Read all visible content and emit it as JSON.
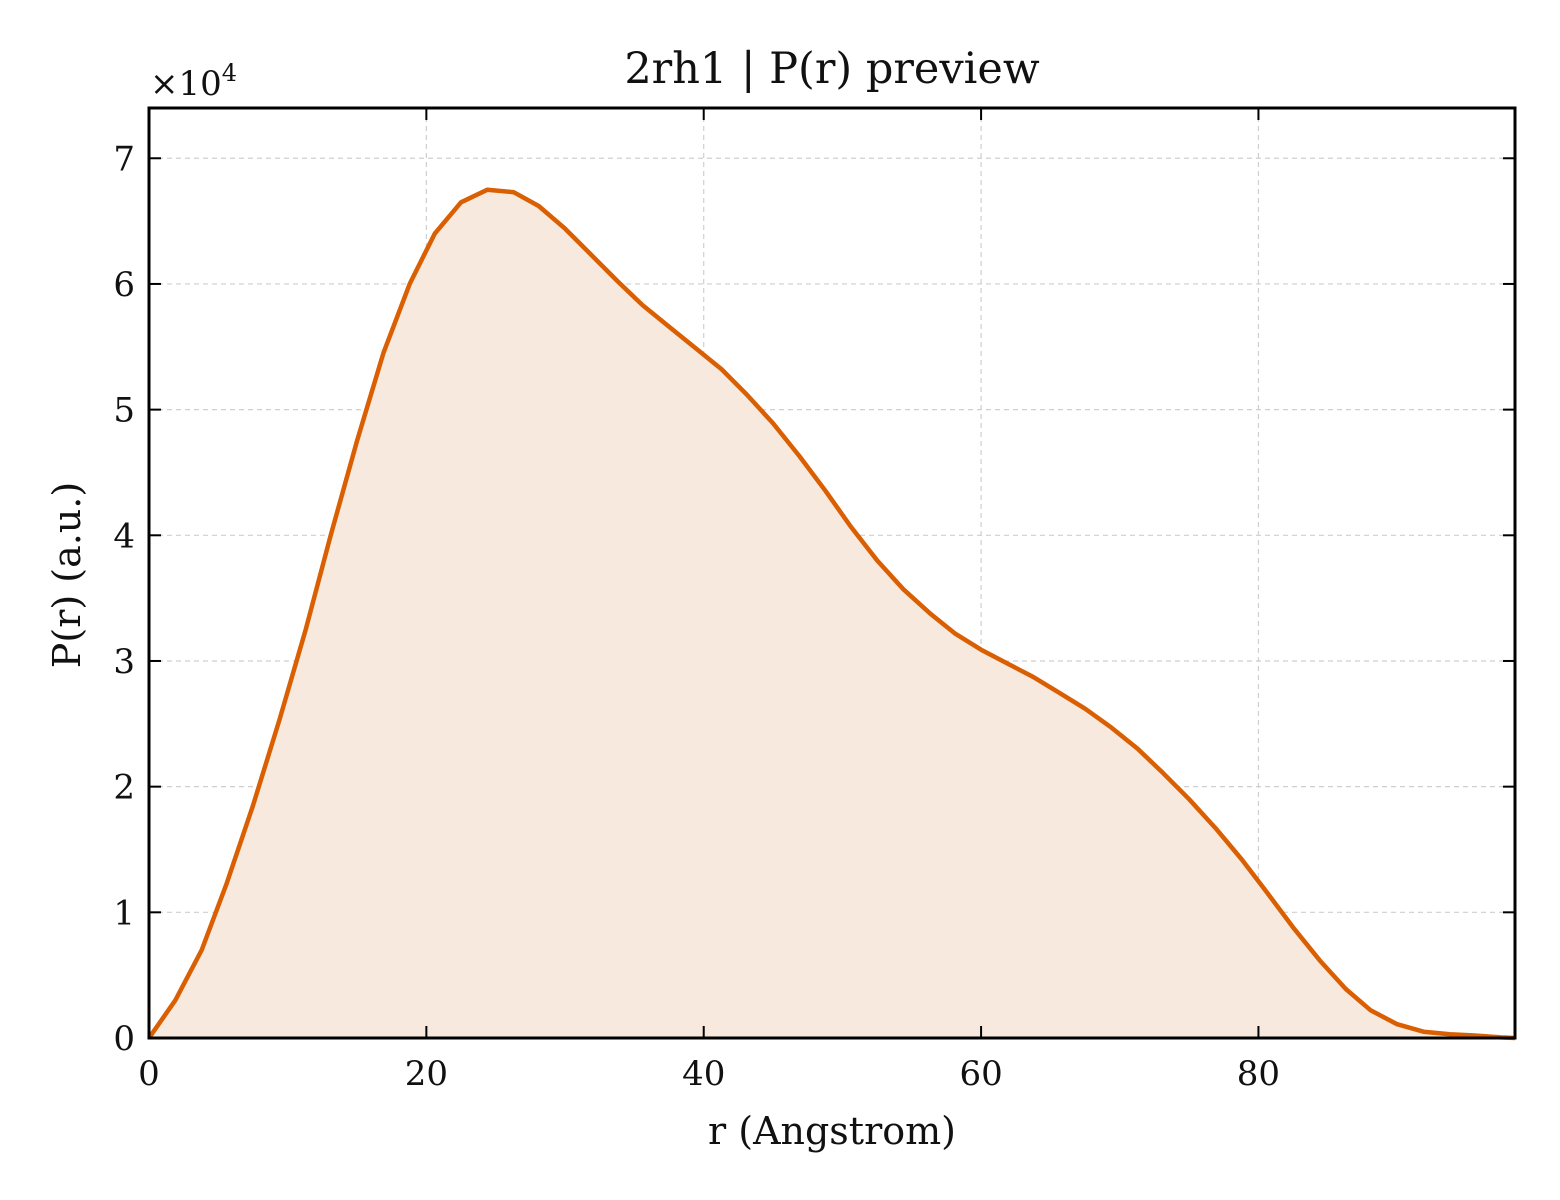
{
  "chart_data": {
    "type": "area",
    "title": "2rh1 | P(r) preview",
    "xlabel": "r (Angstrom)",
    "ylabel": "P(r) (a.u.)",
    "y_scale_label_prefix": "×10",
    "y_scale_label_exponent": "4",
    "y_multiplier": 10000,
    "xlim": [
      0,
      98.5
    ],
    "ylim": [
      0,
      74000
    ],
    "x_ticks": [
      0,
      20,
      40,
      60,
      80
    ],
    "y_ticks": [
      0,
      10000,
      20000,
      30000,
      40000,
      50000,
      60000,
      70000
    ],
    "grid": true,
    "line_color": "#d95f02",
    "fill_color": "#f8e9de",
    "series": [
      {
        "x": [
          0,
          1.9,
          3.8,
          5.6,
          7.5,
          9.4,
          11.3,
          13.1,
          15.0,
          16.9,
          18.8,
          20.6,
          22.5,
          24.4,
          26.3,
          28.1,
          30.0,
          31.9,
          33.8,
          35.6,
          37.5,
          39.4,
          41.3,
          43.1,
          45.0,
          46.9,
          48.8,
          50.6,
          52.5,
          54.4,
          56.3,
          58.1,
          60.0,
          61.9,
          63.8,
          65.6,
          67.5,
          69.4,
          71.3,
          73.1,
          75.0,
          76.9,
          78.8,
          80.6,
          82.5,
          84.4,
          86.3,
          88.1,
          90.0,
          91.9,
          93.8,
          95.6,
          97.5,
          98.5
        ],
        "y": [
          0,
          3000,
          7000,
          12300,
          18500,
          25300,
          32500,
          40000,
          47500,
          54500,
          60000,
          64000,
          66500,
          67500,
          67300,
          66200,
          64400,
          62300,
          60200,
          58300,
          56600,
          54900,
          53200,
          51200,
          48900,
          46300,
          43500,
          40700,
          38000,
          35700,
          33800,
          32200,
          30900,
          29800,
          28700,
          27500,
          26200,
          24700,
          23000,
          21100,
          19000,
          16700,
          14200,
          11600,
          8800,
          6200,
          3900,
          2200,
          1100,
          500,
          300,
          200,
          50,
          0
        ]
      }
    ]
  }
}
